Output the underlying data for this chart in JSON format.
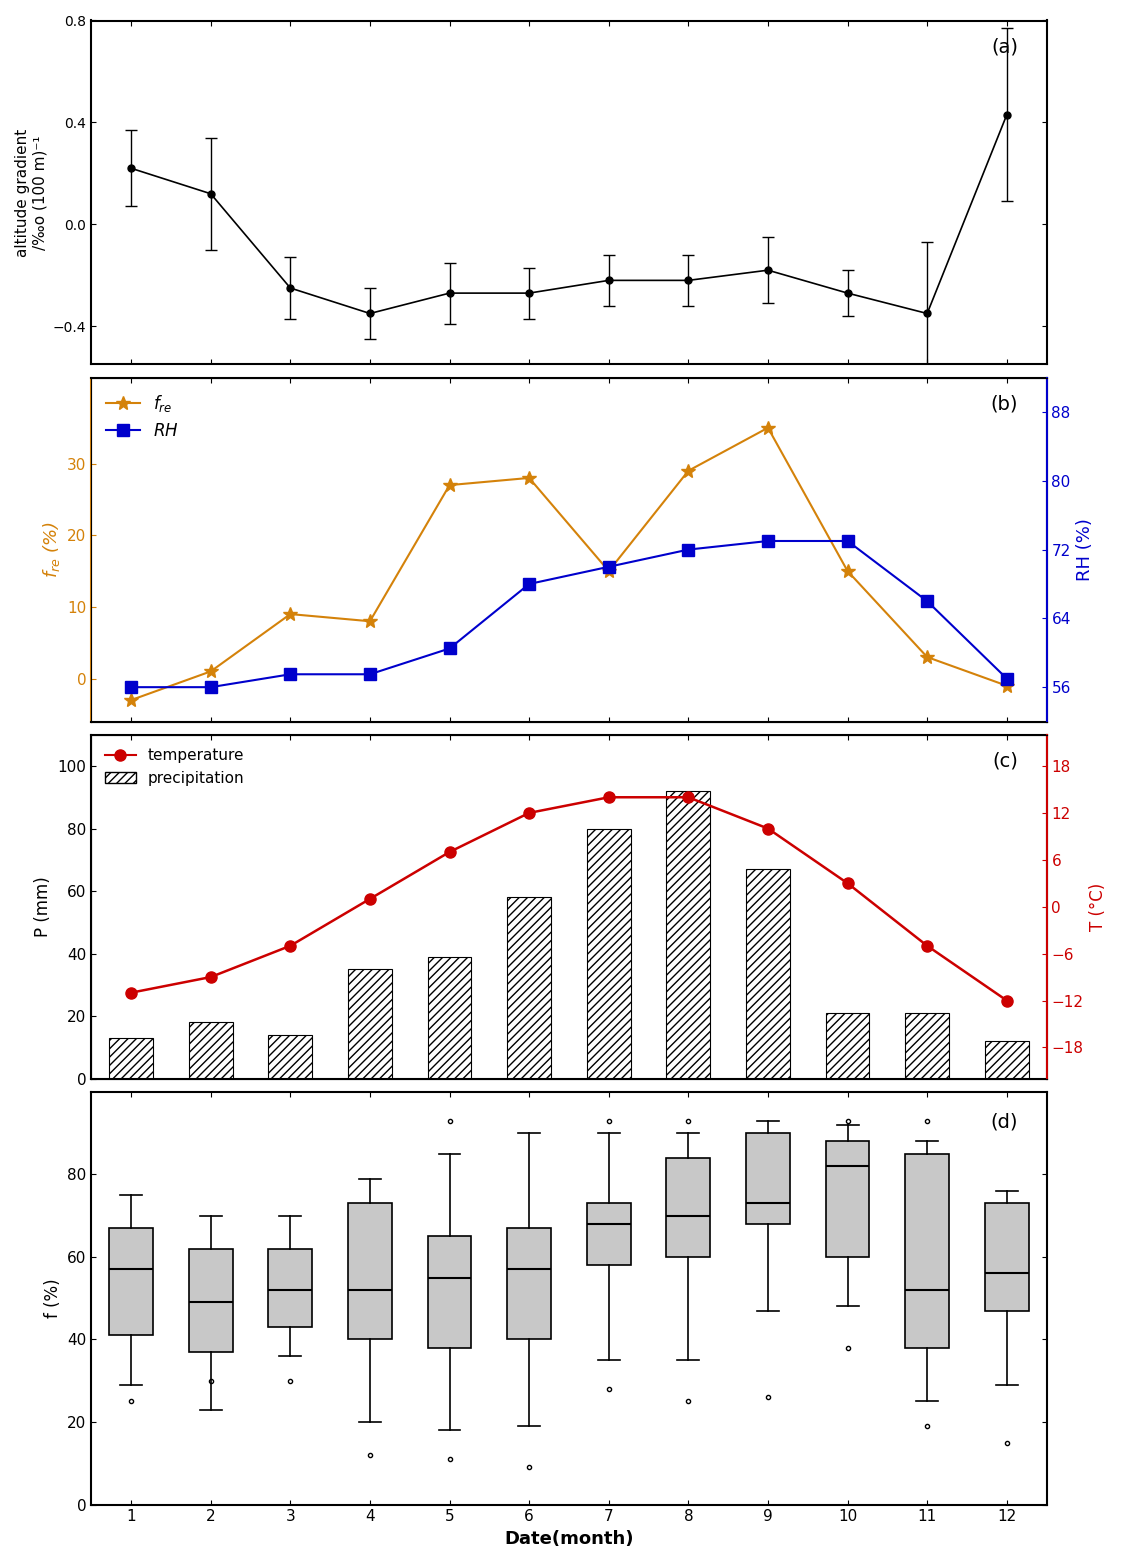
{
  "months": [
    1,
    2,
    3,
    4,
    5,
    6,
    7,
    8,
    9,
    10,
    11,
    12
  ],
  "panel_a": {
    "ylabel": "altitude gradient\n/‰o (100 m)⁻¹",
    "values": [
      0.22,
      0.12,
      -0.25,
      -0.35,
      -0.27,
      -0.27,
      -0.22,
      -0.22,
      -0.18,
      -0.27,
      -0.35,
      0.43
    ],
    "errors": [
      0.15,
      0.22,
      0.12,
      0.1,
      0.12,
      0.1,
      0.1,
      0.1,
      0.13,
      0.09,
      0.28,
      0.34
    ],
    "ylim": [
      -0.55,
      0.8
    ],
    "yticks": [
      -0.4,
      0.0,
      0.4,
      0.8
    ],
    "label": "(a)"
  },
  "panel_b": {
    "fre_ylabel": "$f_{re}$ (%)",
    "rh_ylabel": "RH (%)",
    "fre_values": [
      -3,
      1,
      9,
      8,
      27,
      28,
      15,
      29,
      35,
      15,
      3,
      -1
    ],
    "rh_values": [
      56.0,
      56.0,
      57.5,
      57.5,
      60.5,
      68.0,
      70.0,
      72.0,
      73.0,
      73.0,
      66.0,
      57.0
    ],
    "fre_ylim": [
      -6,
      42
    ],
    "fre_yticks": [
      0,
      10,
      20,
      30
    ],
    "rh_ylim": [
      52,
      92
    ],
    "rh_yticks": [
      56,
      64,
      72,
      80,
      88
    ],
    "fre_color": "#D4820A",
    "rh_color": "#0000CC",
    "label": "(b)"
  },
  "panel_c": {
    "ylabel_left": "P (mm)",
    "ylabel_right": "T (°C)",
    "precip": [
      13,
      18,
      14,
      35,
      39,
      58,
      80,
      92,
      67,
      21,
      21,
      12
    ],
    "temp": [
      -11,
      -9,
      -5,
      1,
      7,
      12,
      14,
      14,
      10,
      3,
      -5,
      -12
    ],
    "precip_ylim": [
      0,
      110
    ],
    "precip_yticks": [
      0,
      20,
      40,
      60,
      80,
      100
    ],
    "temp_ylim": [
      -22,
      22
    ],
    "temp_yticks": [
      -18,
      -12,
      -6,
      0,
      6,
      12,
      18
    ],
    "temp_color": "#CC0000",
    "label": "(c)"
  },
  "panel_d": {
    "ylabel": "f (%)",
    "ylim": [
      0,
      100
    ],
    "yticks": [
      0,
      20,
      40,
      60,
      80
    ],
    "label": "(d)",
    "box_data": {
      "1": {
        "q1": 41,
        "median": 57,
        "q3": 67,
        "whislo": 29,
        "whishi": 75,
        "fliers_lo": [
          25
        ],
        "fliers_hi": []
      },
      "2": {
        "q1": 37,
        "median": 49,
        "q3": 62,
        "whislo": 23,
        "whishi": 70,
        "fliers_lo": [
          30
        ],
        "fliers_hi": []
      },
      "3": {
        "q1": 43,
        "median": 52,
        "q3": 62,
        "whislo": 36,
        "whishi": 70,
        "fliers_lo": [
          30
        ],
        "fliers_hi": []
      },
      "4": {
        "q1": 40,
        "median": 52,
        "q3": 73,
        "whislo": 20,
        "whishi": 79,
        "fliers_lo": [
          12
        ],
        "fliers_hi": []
      },
      "5": {
        "q1": 38,
        "median": 55,
        "q3": 65,
        "whislo": 18,
        "whishi": 85,
        "fliers_lo": [
          11
        ],
        "fliers_hi": [
          93
        ]
      },
      "6": {
        "q1": 40,
        "median": 57,
        "q3": 67,
        "whislo": 19,
        "whishi": 90,
        "fliers_lo": [
          9
        ],
        "fliers_hi": []
      },
      "7": {
        "q1": 58,
        "median": 68,
        "q3": 73,
        "whislo": 35,
        "whishi": 90,
        "fliers_lo": [
          28
        ],
        "fliers_hi": [
          93
        ]
      },
      "8": {
        "q1": 60,
        "median": 70,
        "q3": 84,
        "whislo": 35,
        "whishi": 90,
        "fliers_lo": [
          25
        ],
        "fliers_hi": [
          93
        ]
      },
      "9": {
        "q1": 68,
        "median": 73,
        "q3": 90,
        "whislo": 47,
        "whishi": 93,
        "fliers_lo": [
          26
        ],
        "fliers_hi": []
      },
      "10": {
        "q1": 60,
        "median": 82,
        "q3": 88,
        "whislo": 48,
        "whishi": 92,
        "fliers_lo": [
          38
        ],
        "fliers_hi": [
          93
        ]
      },
      "11": {
        "q1": 38,
        "median": 52,
        "q3": 85,
        "whislo": 25,
        "whishi": 88,
        "fliers_lo": [
          19
        ],
        "fliers_hi": [
          93
        ]
      },
      "12": {
        "q1": 47,
        "median": 56,
        "q3": 73,
        "whislo": 29,
        "whishi": 76,
        "fliers_lo": [
          15
        ],
        "fliers_hi": []
      }
    }
  },
  "xlabel": "Date(month)",
  "box_color": "#C8C8C8",
  "box_edge_color": "black"
}
